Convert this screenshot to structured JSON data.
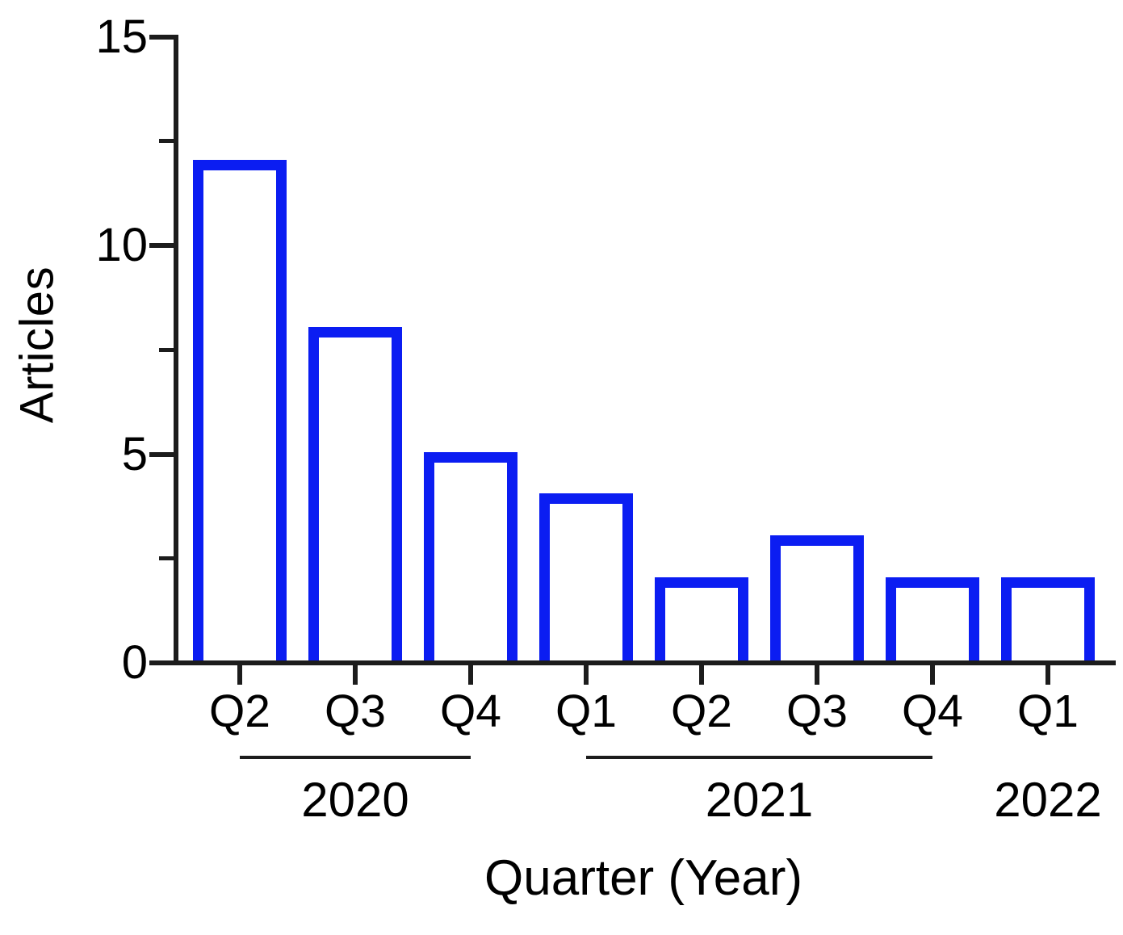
{
  "chart_data": {
    "type": "bar",
    "title": "",
    "xlabel": "Quarter (Year)",
    "ylabel": "Articles",
    "categories": [
      "Q2",
      "Q3",
      "Q4",
      "Q1",
      "Q2",
      "Q3",
      "Q4",
      "Q1"
    ],
    "values": [
      12,
      8,
      5,
      4,
      2,
      3,
      2,
      2
    ],
    "year_groups": [
      {
        "label": "2020",
        "start": 0,
        "end": 2,
        "underline": true
      },
      {
        "label": "2021",
        "start": 3,
        "end": 6,
        "underline": true
      },
      {
        "label": "2022",
        "start": 7,
        "end": 7,
        "underline": false
      }
    ],
    "y_ticks": [
      0,
      5,
      10,
      15
    ],
    "y_tick_labels": [
      "0",
      "5",
      "10",
      "15"
    ],
    "y_minor_ticks": [
      2.5,
      7.5,
      12.5
    ],
    "ylim": [
      0,
      15
    ],
    "grid": false,
    "legend": null,
    "bar_fill": "#ffffff",
    "bar_border": "#0b1df2",
    "axis_color": "#1c1c1c",
    "text_color": "#000000"
  }
}
